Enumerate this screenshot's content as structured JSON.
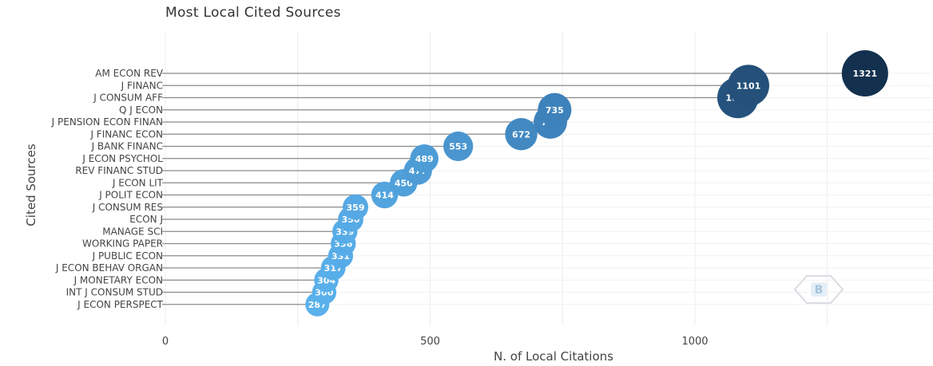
{
  "chart_data": {
    "type": "scatter",
    "title": "Most Local Cited Sources",
    "xlabel": "N. of Local Citations",
    "ylabel": "Cited Sources",
    "xlim": [
      0,
      1450
    ],
    "xticks": [
      0,
      500,
      1000
    ],
    "grid": true,
    "categories": [
      "AM ECON REV",
      "J FINANC",
      "J CONSUM AFF",
      "Q J ECON",
      "J PENSION ECON FINAN",
      "J FINANC ECON",
      "J BANK FINANC",
      "J ECON PSYCHOL",
      "REV FINANC STUD",
      "J ECON LIT",
      "J POLIT ECON",
      "J CONSUM RES",
      "ECON J",
      "MANAGE SCI",
      "WORKING PAPER",
      "J PUBLIC ECON",
      "J ECON BEHAV ORGAN",
      "J MONETARY ECON",
      "INT J CONSUM STUD",
      "J ECON PERSPECT"
    ],
    "values": [
      1321,
      1101,
      1081,
      735,
      727,
      672,
      553,
      489,
      477,
      450,
      414,
      359,
      350,
      339,
      336,
      331,
      317,
      304,
      300,
      287
    ],
    "color_scale": {
      "low": "#5ab1ec",
      "mid": "#3a7bb4",
      "high": "#13304f"
    }
  }
}
